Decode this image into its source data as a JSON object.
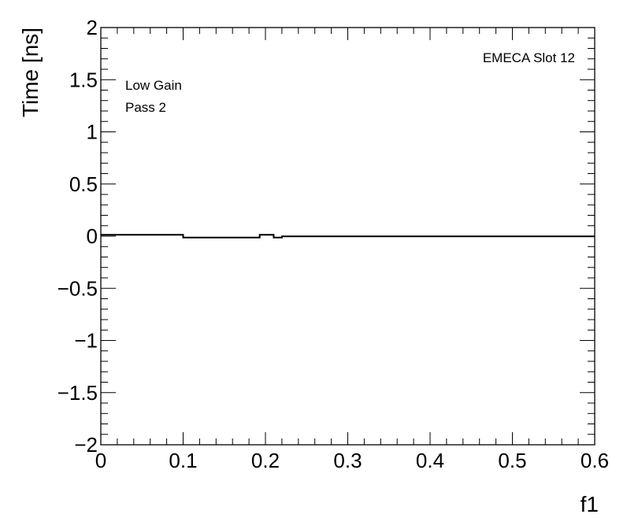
{
  "chart_data": {
    "type": "line",
    "title": "",
    "xlabel": "f1",
    "ylabel": "Time [ns]",
    "xlim": [
      0,
      0.6
    ],
    "ylim": [
      -2,
      2
    ],
    "x_ticks": [
      0,
      0.1,
      0.2,
      0.3,
      0.4,
      0.5,
      0.6
    ],
    "x_tick_labels": [
      "0",
      "0.1",
      "0.2",
      "0.3",
      "0.4",
      "0.5",
      "0.6"
    ],
    "y_ticks": [
      -2,
      -1.5,
      -1,
      -0.5,
      0,
      0.5,
      1,
      1.5,
      2
    ],
    "y_tick_labels": [
      "−2",
      "−1.5",
      "−1",
      "−0.5",
      "0",
      "0.5",
      "1",
      "1.5",
      "2"
    ],
    "grid": false,
    "annotations": {
      "top_right": "EMECA Slot 12",
      "line1": "Low Gain",
      "line2": "Pass 2"
    },
    "series": [
      {
        "style": "step-histogram",
        "color": "#000000",
        "bins": [
          {
            "x0": 0.0,
            "x1": 0.1,
            "y": 0.013
          },
          {
            "x0": 0.1,
            "x1": 0.193,
            "y": -0.013
          },
          {
            "x0": 0.193,
            "x1": 0.21,
            "y": 0.013
          },
          {
            "x0": 0.21,
            "x1": 0.22,
            "y": -0.013
          },
          {
            "x0": 0.22,
            "x1": 0.6,
            "y": -0.002
          }
        ]
      }
    ]
  }
}
